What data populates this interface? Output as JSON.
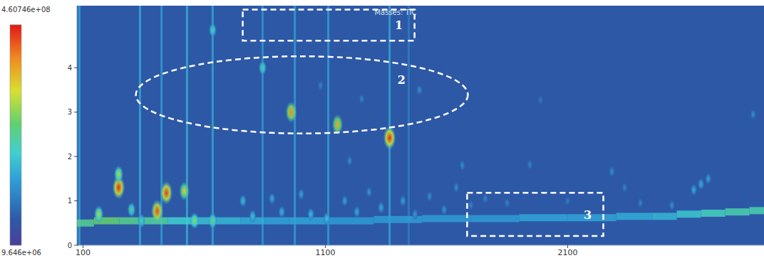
{
  "chart_data": {
    "type": "heatmap",
    "title": "Masses: TIC",
    "xlim": [
      75,
      2910
    ],
    "xticks": [
      100,
      1100,
      2100
    ],
    "ylim": [
      0,
      5.4
    ],
    "yticks": [
      0,
      1,
      2,
      3,
      4
    ],
    "grid": false,
    "colorbar": {
      "range": [
        9646000,
        460746000
      ],
      "ticks": [
        {
          "value": 460746000,
          "label": "4.60746e+08"
        },
        {
          "value": 9646000,
          "label": "9.646e+06"
        }
      ]
    },
    "peaks": {
      "x": [
        247,
        247,
        444,
        406,
        518,
        959,
        1150,
        1365,
        841,
        635,
        165,
        300,
        341,
        560,
        635,
        760,
        800,
        880,
        920,
        1000,
        1040,
        1106,
        1180,
        1230,
        1280,
        1330,
        1420,
        1470,
        1530,
        1590,
        1640,
        1700,
        1760,
        1488,
        1665,
        1944,
        2282,
        2335,
        2865,
        2620,
        2650,
        2680,
        1988,
        1080,
        1250,
        1850,
        2100,
        2400,
        2530,
        1200
      ],
      "y": [
        1.3,
        1.6,
        1.18,
        0.77,
        1.22,
        3.0,
        2.72,
        2.42,
        4.0,
        4.85,
        0.7,
        0.8,
        0.55,
        0.55,
        0.55,
        1.0,
        0.65,
        1.05,
        0.75,
        1.15,
        0.7,
        0.6,
        1.0,
        0.75,
        1.2,
        0.85,
        1.0,
        0.7,
        1.1,
        0.8,
        1.3,
        0.9,
        1.05,
        3.5,
        1.8,
        1.82,
        1.66,
        1.3,
        2.95,
        1.25,
        1.38,
        1.5,
        3.27,
        3.6,
        3.3,
        0.95,
        1.0,
        0.95,
        0.9,
        1.9
      ],
      "values": [
        450000000,
        300000000,
        440000000,
        430000000,
        340000000,
        390000000,
        370000000,
        450000000,
        230000000,
        220000000,
        300000000,
        240000000,
        220000000,
        280000000,
        260000000,
        180000000,
        190000000,
        160000000,
        170000000,
        150000000,
        180000000,
        190000000,
        150000000,
        160000000,
        140000000,
        160000000,
        150000000,
        140000000,
        130000000,
        140000000,
        130000000,
        120000000,
        120000000,
        130000000,
        130000000,
        120000000,
        130000000,
        120000000,
        130000000,
        160000000,
        160000000,
        150000000,
        110000000,
        120000000,
        120000000,
        120000000,
        110000000,
        120000000,
        130000000,
        130000000
      ]
    },
    "streaks": {
      "x": [
        85,
        335,
        424,
        529,
        635,
        841,
        974,
        1112,
        1365,
        1444
      ],
      "values": [
        160000000,
        160000000,
        150000000,
        170000000,
        160000000,
        140000000,
        150000000,
        150000000,
        160000000,
        110000000
      ]
    },
    "baseline": {
      "x": [
        90,
        200,
        300,
        400,
        500,
        600,
        700,
        800,
        900,
        1000,
        1200,
        1400,
        1600,
        1800,
        2000,
        2200,
        2400,
        2500,
        2600,
        2700,
        2800,
        2900
      ],
      "y": [
        0.5,
        0.55,
        0.55,
        0.55,
        0.55,
        0.55,
        0.55,
        0.55,
        0.55,
        0.55,
        0.55,
        0.58,
        0.6,
        0.6,
        0.62,
        0.62,
        0.65,
        0.65,
        0.7,
        0.72,
        0.75,
        0.78
      ],
      "values": [
        240000000,
        260000000,
        240000000,
        230000000,
        200000000,
        180000000,
        170000000,
        160000000,
        150000000,
        150000000,
        140000000,
        140000000,
        140000000,
        140000000,
        150000000,
        150000000,
        160000000,
        170000000,
        190000000,
        210000000,
        220000000,
        220000000
      ]
    },
    "regions": [
      {
        "label": "1",
        "type": "rect",
        "xlim": [
          759,
          1468
        ],
        "ylim": [
          4.61,
          5.31
        ]
      },
      {
        "label": "2",
        "type": "ellipse",
        "xlim": [
          318,
          1688
        ],
        "ylim": [
          2.52,
          4.26
        ]
      },
      {
        "label": "3",
        "type": "rect",
        "xlim": [
          1685,
          2247
        ],
        "ylim": [
          0.21,
          1.18
        ]
      }
    ]
  }
}
